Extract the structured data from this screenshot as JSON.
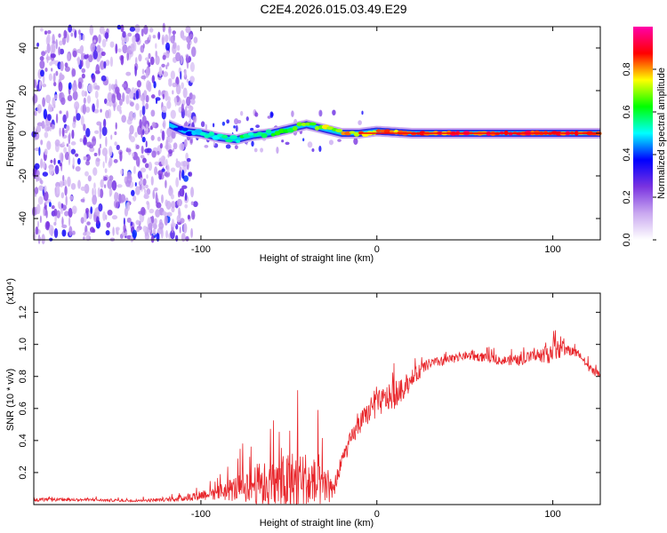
{
  "title": "C2E4.2026.015.03.49.E29",
  "chart_data": [
    {
      "type": "heatmap",
      "name": "spectrogram",
      "xlabel": "Height of straight line (km)",
      "ylabel": "Frequency (Hz)",
      "xlim": [
        -195,
        127
      ],
      "ylim": [
        -50,
        50
      ],
      "x_ticks": [
        -100,
        0,
        100
      ],
      "x_tick_labels": [
        "-100",
        "0",
        "100"
      ],
      "y_ticks": [
        -40,
        -20,
        0,
        20,
        40
      ],
      "y_tick_labels": [
        "-40",
        "-20",
        "0",
        "20",
        "40"
      ],
      "noise_region_x": [
        -195,
        -103
      ],
      "signal_track": {
        "x": [
          -118,
          -110,
          -100,
          -90,
          -80,
          -70,
          -60,
          -55,
          -50,
          -45,
          -40,
          -35,
          -30,
          -25,
          -20,
          -10,
          0,
          10,
          20,
          40,
          60,
          80,
          100,
          127
        ],
        "freq_hz": [
          4,
          1,
          0,
          -2,
          -3,
          -1,
          0,
          1,
          2,
          3,
          4,
          3,
          2,
          1,
          0,
          0,
          1,
          0.5,
          0,
          0,
          0,
          0,
          0,
          0
        ],
        "amplitude": [
          0.3,
          0.4,
          0.5,
          0.55,
          0.6,
          0.55,
          0.6,
          0.65,
          0.65,
          0.7,
          0.7,
          0.7,
          0.75,
          0.75,
          0.8,
          0.8,
          0.85,
          0.85,
          0.9,
          0.9,
          0.92,
          0.92,
          0.95,
          0.92
        ]
      },
      "colorbar": {
        "label": "Normalized spectral amplitude",
        "range": [
          0,
          1
        ],
        "ticks": [
          0.0,
          0.2,
          0.4,
          0.6,
          0.8
        ],
        "tick_labels": [
          "0.0",
          "0.2",
          "0.4",
          "0.6",
          "0.8"
        ],
        "colors": [
          "#ffffff",
          "#c9a8f0",
          "#7a33e0",
          "#0000ff",
          "#00ffff",
          "#00ff00",
          "#ffff00",
          "#ff0000",
          "#ff00aa"
        ]
      }
    },
    {
      "type": "line",
      "name": "snr",
      "xlabel": "Height of straight line (km)",
      "ylabel": "SNR (10 * v/v)",
      "y_exponent_label": "(x10⁴)",
      "xlim": [
        -195,
        127
      ],
      "ylim": [
        0,
        1.32
      ],
      "x_ticks": [
        -100,
        0,
        100
      ],
      "x_tick_labels": [
        "-100",
        "0",
        "100"
      ],
      "y_ticks": [
        0.2,
        0.4,
        0.6,
        0.8,
        1.0,
        1.2
      ],
      "y_tick_labels": [
        "0.2",
        "0.4",
        "0.6",
        "0.8",
        "1.0",
        "1.2"
      ],
      "color": "#e8262b",
      "series_envelope": {
        "x": [
          -195,
          -170,
          -140,
          -120,
          -110,
          -100,
          -90,
          -80,
          -70,
          -60,
          -50,
          -45,
          -40,
          -35,
          -30,
          -25,
          -20,
          -15,
          -10,
          -5,
          0,
          5,
          10,
          15,
          20,
          25,
          30,
          40,
          50,
          60,
          70,
          80,
          90,
          100,
          105,
          110,
          115,
          120,
          127
        ],
        "base": [
          0.03,
          0.03,
          0.025,
          0.03,
          0.04,
          0.06,
          0.08,
          0.1,
          0.13,
          0.12,
          0.13,
          0.15,
          0.14,
          0.12,
          0.1,
          0.08,
          0.27,
          0.4,
          0.5,
          0.57,
          0.62,
          0.66,
          0.68,
          0.72,
          0.78,
          0.84,
          0.88,
          0.9,
          0.93,
          0.92,
          0.9,
          0.9,
          0.93,
          0.96,
          0.97,
          0.96,
          0.94,
          0.86,
          0.8
        ],
        "spread": [
          0.02,
          0.015,
          0.015,
          0.02,
          0.04,
          0.06,
          0.1,
          0.15,
          0.22,
          0.3,
          0.35,
          0.4,
          0.35,
          0.3,
          0.2,
          0.1,
          0.1,
          0.1,
          0.12,
          0.12,
          0.15,
          0.15,
          0.15,
          0.12,
          0.1,
          0.08,
          0.06,
          0.05,
          0.05,
          0.05,
          0.05,
          0.06,
          0.07,
          0.15,
          0.08,
          0.06,
          0.05,
          0.05,
          0.04
        ]
      }
    }
  ]
}
